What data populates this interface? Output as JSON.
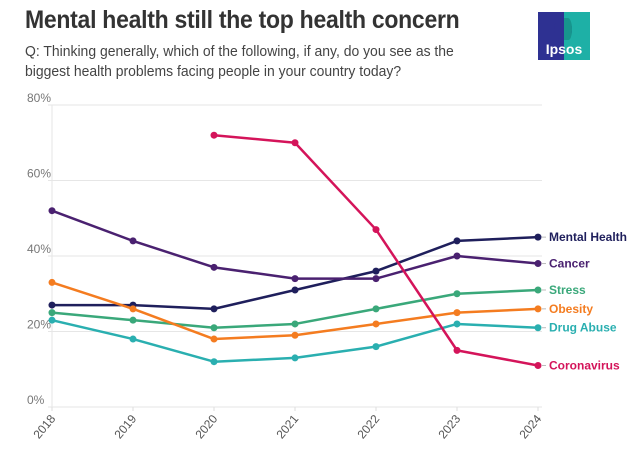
{
  "header": {
    "title": "Mental health still the top health concern",
    "subtitle": "Q: Thinking generally, which of the following, if any, do you see as the biggest health problems facing people in your country today?",
    "logo_text": "Ipsos"
  },
  "chart_data": {
    "type": "line",
    "title": "Mental health still the top health concern",
    "subtitle": "Q: Thinking generally, which of the following, if any, do you see as the biggest health problems facing people in your country today?",
    "xlabel": "",
    "ylabel": "",
    "x": [
      "2018",
      "2019",
      "2020",
      "2021",
      "2022",
      "2023",
      "2024"
    ],
    "ylim": [
      0,
      80
    ],
    "yticks": [
      0,
      20,
      40,
      60,
      80
    ],
    "ytick_labels": [
      "0%",
      "20%",
      "40%",
      "60%",
      "80%"
    ],
    "grid": true,
    "legend": "direct labels at right end of lines",
    "series": [
      {
        "name": "Mental Health",
        "color": "#1f1f5c",
        "values": [
          27,
          27,
          26,
          31,
          36,
          44,
          45
        ]
      },
      {
        "name": "Cancer",
        "color": "#4a2170",
        "values": [
          52,
          44,
          37,
          34,
          34,
          40,
          38
        ]
      },
      {
        "name": "Stress",
        "color": "#3aa87a",
        "values": [
          25,
          23,
          21,
          22,
          26,
          30,
          31
        ]
      },
      {
        "name": "Obesity",
        "color": "#f47c20",
        "values": [
          33,
          26,
          18,
          19,
          22,
          25,
          26
        ]
      },
      {
        "name": "Drug Abuse",
        "color": "#2aafb0",
        "values": [
          23,
          18,
          12,
          13,
          16,
          22,
          21
        ]
      },
      {
        "name": "Coronavirus",
        "color": "#d4145a",
        "values": [
          null,
          null,
          72,
          70,
          47,
          15,
          11
        ]
      }
    ]
  }
}
